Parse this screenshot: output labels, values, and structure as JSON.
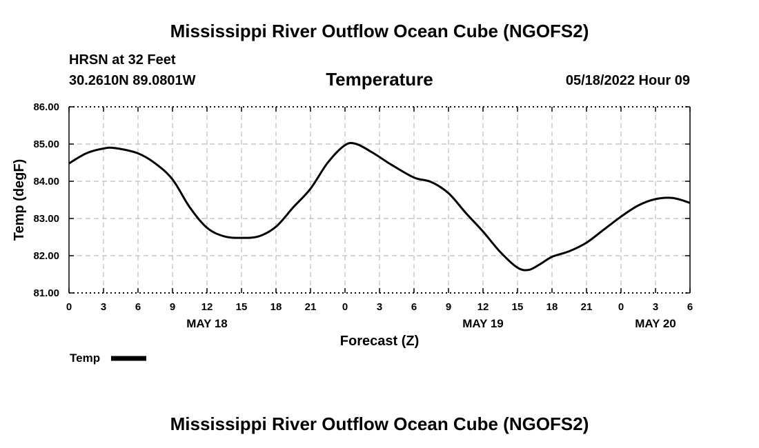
{
  "header": {
    "title": "Mississippi River Outflow Ocean Cube (NGOFS2)",
    "station": "HRSN at 32 Feet",
    "coords": "30.2610N  89.0801W",
    "chart_title": "Temperature",
    "datetime": "05/18/2022 Hour 09"
  },
  "footer": {
    "title": "Mississippi River Outflow Ocean Cube (NGOFS2)"
  },
  "colors": {
    "line": "#000000",
    "grid": "#bbbbbb",
    "background": "#ffffff"
  },
  "chart_data": {
    "type": "line",
    "title": "Temperature",
    "xlabel": "Forecast (Z)",
    "ylabel": "Temp (degF)",
    "ylim": [
      81,
      86
    ],
    "xlim": [
      0,
      54
    ],
    "x_unit": "hours from 05/18 00Z",
    "y_ticks": [
      "81.00",
      "82.00",
      "83.00",
      "84.00",
      "85.00",
      "86.00"
    ],
    "x_tick_labels": [
      "0",
      "3",
      "6",
      "9",
      "12",
      "15",
      "18",
      "21",
      "0",
      "3",
      "6",
      "9",
      "12",
      "15",
      "18",
      "21",
      "0",
      "3",
      "6"
    ],
    "day_labels": [
      {
        "x": 12,
        "label": "MAY 18"
      },
      {
        "x": 36,
        "label": "MAY 19"
      },
      {
        "x": 51,
        "label": "MAY 20"
      }
    ],
    "legend": "Temp",
    "grid": true,
    "series": [
      {
        "name": "Temp",
        "x": [
          0,
          1.5,
          3,
          4,
          6,
          7.5,
          9,
          10.5,
          12,
          13.5,
          15,
          16.5,
          18,
          19.5,
          21,
          22.5,
          24,
          25,
          26.5,
          28,
          30,
          31.5,
          33,
          34.5,
          36,
          37.5,
          39,
          40,
          41,
          42,
          43.5,
          45,
          46.5,
          48,
          49.5,
          51,
          52.5,
          54
        ],
        "values": [
          84.48,
          84.75,
          84.88,
          84.89,
          84.75,
          84.48,
          84.05,
          83.3,
          82.75,
          82.52,
          82.48,
          82.52,
          82.78,
          83.3,
          83.8,
          84.5,
          84.97,
          85.0,
          84.75,
          84.45,
          84.1,
          83.98,
          83.68,
          83.15,
          82.65,
          82.1,
          81.68,
          81.62,
          81.78,
          81.97,
          82.12,
          82.35,
          82.7,
          83.05,
          83.35,
          83.52,
          83.55,
          83.42
        ]
      }
    ]
  }
}
